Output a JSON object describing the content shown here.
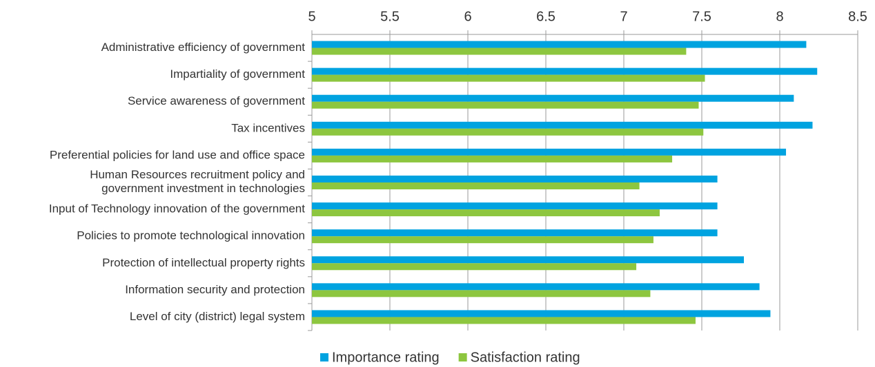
{
  "chart_data": {
    "type": "bar",
    "orientation": "horizontal",
    "categories": [
      "Administrative efficiency of government",
      "Impartiality of government",
      "Service awareness of government",
      "Tax incentives",
      "Preferential policies for land use and office space",
      "Human Resources recruitment policy and\ngovernment investment in technologies",
      "Input of Technology innovation of the government",
      "Policies to promote technological innovation",
      "Protection of intellectual property rights",
      "Information security and protection",
      "Level of city (district) legal system"
    ],
    "series": [
      {
        "name": "Importance rating",
        "color": "#00a3e0",
        "values": [
          8.17,
          8.24,
          8.09,
          8.21,
          8.04,
          7.6,
          7.6,
          7.6,
          7.77,
          7.87,
          7.94
        ]
      },
      {
        "name": "Satisfaction rating",
        "color": "#8dc63f",
        "values": [
          7.4,
          7.52,
          7.48,
          7.51,
          7.31,
          7.1,
          7.23,
          7.19,
          7.08,
          7.17,
          7.46
        ]
      }
    ],
    "xlim": [
      5,
      8.5
    ],
    "xticks": [
      5,
      5.5,
      6,
      6.5,
      7,
      7.5,
      8,
      8.5
    ],
    "grid": true
  }
}
